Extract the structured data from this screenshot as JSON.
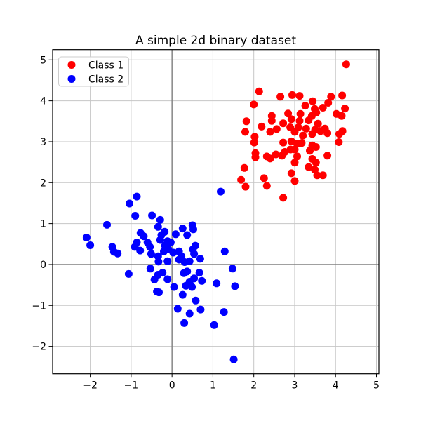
{
  "chart_data": {
    "type": "scatter",
    "title": "A simple 2d binary dataset",
    "xlabel": "",
    "ylabel": "",
    "xlim": [
      -2.92,
      5.06
    ],
    "ylim": [
      -2.67,
      5.25
    ],
    "grid": true,
    "xticks": {
      "values": [
        -2,
        -1,
        0,
        1,
        2,
        3,
        4,
        5
      ],
      "labels": [
        "−2",
        "−1",
        "0",
        "1",
        "2",
        "3",
        "4",
        "5"
      ]
    },
    "yticks": {
      "values": [
        -2,
        -1,
        0,
        1,
        2,
        3,
        4,
        5
      ],
      "labels": [
        "−2",
        "−1",
        "0",
        "1",
        "2",
        "3",
        "4",
        "5"
      ]
    },
    "zero_lines": {
      "x": 0,
      "y": 0,
      "color": "#808080"
    },
    "legend": {
      "position": "upper left"
    },
    "colors": {
      "class1": "#ff0000",
      "class2": "#0000ff",
      "grid": "#c6c6c6",
      "spine": "#000000",
      "background": "#ffffff",
      "legend_border": "#cccccc"
    },
    "marker_radius_px": 5.5,
    "series": [
      {
        "name": "Class 1",
        "color": "#ff0000",
        "points": [
          [
            2.13,
            4.23
          ],
          [
            2.65,
            4.1
          ],
          [
            2.94,
            4.14
          ],
          [
            3.12,
            4.12
          ],
          [
            2.0,
            3.91
          ],
          [
            1.82,
            3.5
          ],
          [
            2.84,
            3.69
          ],
          [
            2.92,
            3.55
          ],
          [
            4.26,
            4.89
          ],
          [
            4.16,
            4.13
          ],
          [
            3.89,
            4.1
          ],
          [
            3.82,
            3.95
          ],
          [
            3.69,
            3.83
          ],
          [
            3.44,
            3.99
          ],
          [
            3.26,
            3.88
          ],
          [
            3.49,
            3.8
          ],
          [
            3.53,
            3.71
          ],
          [
            3.42,
            3.63
          ],
          [
            3.14,
            3.68
          ],
          [
            4.02,
            3.68
          ],
          [
            4.15,
            3.63
          ],
          [
            4.23,
            3.81
          ],
          [
            2.44,
            3.63
          ],
          [
            2.44,
            3.51
          ],
          [
            2.72,
            3.45
          ],
          [
            2.19,
            3.37
          ],
          [
            1.79,
            3.24
          ],
          [
            2.4,
            3.24
          ],
          [
            2.56,
            3.31
          ],
          [
            2.89,
            3.35
          ],
          [
            2.02,
            3.12
          ],
          [
            2.01,
            2.98
          ],
          [
            2.72,
            2.98
          ],
          [
            2.92,
            3.01
          ],
          [
            2.04,
            2.72
          ],
          [
            2.04,
            2.62
          ],
          [
            2.32,
            2.64
          ],
          [
            2.4,
            2.59
          ],
          [
            2.54,
            2.69
          ],
          [
            2.69,
            2.66
          ],
          [
            2.76,
            2.75
          ],
          [
            2.9,
            2.81
          ],
          [
            1.77,
            2.36
          ],
          [
            1.69,
            2.07
          ],
          [
            1.8,
            1.9
          ],
          [
            2.25,
            2.11
          ],
          [
            2.32,
            1.92
          ],
          [
            2.92,
            2.23
          ],
          [
            2.72,
            1.63
          ],
          [
            3.12,
            3.51
          ],
          [
            3.34,
            3.52
          ],
          [
            3.57,
            3.44
          ],
          [
            3.74,
            3.32
          ],
          [
            3.5,
            3.29
          ],
          [
            3.63,
            3.26
          ],
          [
            3.43,
            3.19
          ],
          [
            3.28,
            3.32
          ],
          [
            3.09,
            3.35
          ],
          [
            3.0,
            3.24
          ],
          [
            3.2,
            3.15
          ],
          [
            3.8,
            3.21
          ],
          [
            4.17,
            3.26
          ],
          [
            4.09,
            3.19
          ],
          [
            4.08,
            2.99
          ],
          [
            3.06,
            2.95
          ],
          [
            3.17,
            2.97
          ],
          [
            3.0,
            2.81
          ],
          [
            3.43,
            2.91
          ],
          [
            3.52,
            2.87
          ],
          [
            3.37,
            2.78
          ],
          [
            3.8,
            2.66
          ],
          [
            3.06,
            2.64
          ],
          [
            3.0,
            2.49
          ],
          [
            3.43,
            2.58
          ],
          [
            3.52,
            2.49
          ],
          [
            3.34,
            2.38
          ],
          [
            3.49,
            2.32
          ],
          [
            3.55,
            2.18
          ],
          [
            3.69,
            2.18
          ],
          [
            3.0,
            2.04
          ]
        ]
      },
      {
        "name": "Class 2",
        "color": "#0000ff",
        "points": [
          [
            -0.86,
            1.66
          ],
          [
            -1.04,
            1.49
          ],
          [
            -0.9,
            1.19
          ],
          [
            -0.49,
            1.2
          ],
          [
            -1.59,
            0.97
          ],
          [
            -2.09,
            0.66
          ],
          [
            -2.0,
            0.47
          ],
          [
            -1.46,
            0.43
          ],
          [
            -1.42,
            0.31
          ],
          [
            -1.33,
            0.27
          ],
          [
            -0.77,
            0.77
          ],
          [
            -0.69,
            0.69
          ],
          [
            -0.6,
            0.54
          ],
          [
            -0.86,
            0.54
          ],
          [
            -0.91,
            0.43
          ],
          [
            -0.78,
            0.34
          ],
          [
            -0.54,
            0.43
          ],
          [
            -0.51,
            0.26
          ],
          [
            -0.33,
            0.07
          ],
          [
            -0.53,
            -0.1
          ],
          [
            1.19,
            1.78
          ],
          [
            -0.29,
            1.09
          ],
          [
            0.5,
            0.96
          ],
          [
            0.26,
            0.88
          ],
          [
            0.52,
            0.86
          ],
          [
            -0.34,
            0.92
          ],
          [
            -0.18,
            0.8
          ],
          [
            0.09,
            0.74
          ],
          [
            0.37,
            0.72
          ],
          [
            -0.26,
            0.72
          ],
          [
            -0.29,
            0.6
          ],
          [
            -0.11,
            0.57
          ],
          [
            -0.17,
            0.46
          ],
          [
            -0.03,
            0.54
          ],
          [
            -0.09,
            0.37
          ],
          [
            -0.2,
            0.32
          ],
          [
            0.03,
            0.29
          ],
          [
            -0.34,
            0.2
          ],
          [
            0.17,
            0.32
          ],
          [
            0.23,
            0.2
          ],
          [
            0.17,
            0.12
          ],
          [
            0.31,
            0.06
          ],
          [
            0.51,
            0.37
          ],
          [
            0.57,
            0.46
          ],
          [
            0.54,
            0.26
          ],
          [
            0.69,
            0.14
          ],
          [
            0.43,
            0.08
          ],
          [
            -0.11,
            0.08
          ],
          [
            1.29,
            0.32
          ],
          [
            1.48,
            -0.1
          ],
          [
            -1.06,
            -0.23
          ],
          [
            -0.43,
            -0.37
          ],
          [
            -0.37,
            -0.66
          ],
          [
            -0.23,
            -0.2
          ],
          [
            -0.34,
            -0.25
          ],
          [
            -0.11,
            -0.36
          ],
          [
            0.29,
            -0.21
          ],
          [
            0.37,
            -0.17
          ],
          [
            0.54,
            -0.34
          ],
          [
            0.67,
            -0.2
          ],
          [
            0.73,
            -0.4
          ],
          [
            0.43,
            -0.42
          ],
          [
            0.34,
            -0.52
          ],
          [
            0.49,
            -0.55
          ],
          [
            0.05,
            -0.55
          ],
          [
            -0.32,
            -0.68
          ],
          [
            0.26,
            -0.74
          ],
          [
            0.58,
            -0.88
          ],
          [
            1.09,
            -0.46
          ],
          [
            1.54,
            -0.53
          ],
          [
            0.14,
            -1.08
          ],
          [
            0.43,
            -1.2
          ],
          [
            0.7,
            -1.1
          ],
          [
            0.3,
            -1.43
          ],
          [
            1.27,
            -1.16
          ],
          [
            1.03,
            -1.48
          ],
          [
            1.51,
            -2.32
          ]
        ]
      }
    ]
  }
}
